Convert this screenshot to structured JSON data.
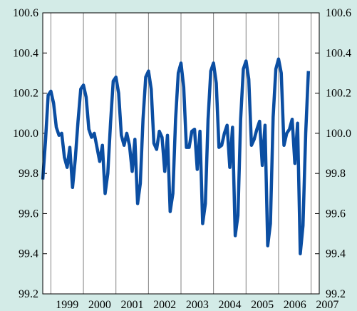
{
  "chart_data": {
    "type": "line",
    "title": "",
    "xlabel": "",
    "ylabel": "",
    "ylim": [
      99.2,
      100.6
    ],
    "y_ticks": [
      "99.2",
      "99.4",
      "99.6",
      "99.8",
      "100.0",
      "100.2",
      "100.4",
      "100.6"
    ],
    "y_ticks_right": [
      "99.2",
      "99.4",
      "99.6",
      "99.8",
      "100.0",
      "100.2",
      "100.4",
      "100.6"
    ],
    "x_year_labels": [
      "1999",
      "2000",
      "2001",
      "2002",
      "2003",
      "2004",
      "2005",
      "2006",
      "2007"
    ],
    "x_range_years": [
      1998.75,
      2007.25
    ],
    "grid": true,
    "grid_axis": "x",
    "colors": {
      "background": "#d3ebe7",
      "plot_background": "#ffffff",
      "line": "#0b4ea2",
      "grid": "#808080"
    },
    "series": [
      {
        "name": "",
        "x_start": "1998-10",
        "frequency": "monthly",
        "values": [
          99.77,
          99.96,
          100.19,
          100.21,
          100.15,
          100.03,
          99.99,
          100.0,
          99.88,
          99.83,
          99.93,
          99.73,
          99.87,
          100.06,
          100.22,
          100.24,
          100.18,
          100.02,
          99.98,
          100.0,
          99.93,
          99.86,
          99.94,
          99.7,
          99.8,
          100.05,
          100.26,
          100.28,
          100.2,
          99.99,
          99.94,
          100.0,
          99.94,
          99.81,
          99.97,
          99.65,
          99.75,
          100.07,
          100.28,
          100.31,
          100.22,
          99.95,
          99.92,
          100.01,
          99.98,
          99.81,
          99.99,
          99.61,
          99.7,
          100.07,
          100.3,
          100.35,
          100.23,
          99.93,
          99.93,
          100.01,
          100.02,
          99.82,
          100.01,
          99.55,
          99.65,
          100.07,
          100.31,
          100.35,
          100.25,
          99.93,
          99.94,
          100.0,
          100.04,
          99.83,
          100.03,
          99.49,
          99.59,
          100.07,
          100.32,
          100.36,
          100.27,
          99.94,
          99.97,
          100.02,
          100.06,
          99.84,
          100.04,
          99.44,
          99.55,
          100.08,
          100.32,
          100.37,
          100.3,
          99.94,
          100.0,
          100.02,
          100.07,
          99.85,
          100.05,
          99.4,
          99.54,
          100.0,
          100.31
        ]
      }
    ]
  }
}
